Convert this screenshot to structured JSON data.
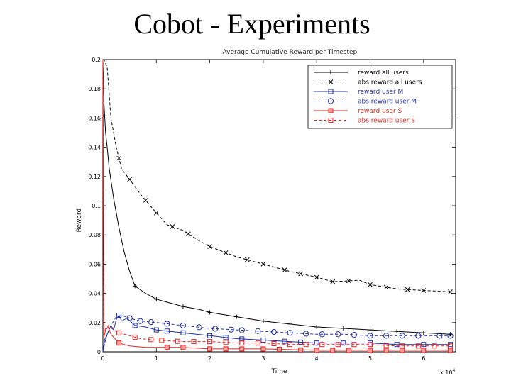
{
  "slide": {
    "title": "Cobot - Experiments"
  },
  "chart_data": {
    "type": "line",
    "title": "Average Cumulative Reward per Timestep",
    "xlabel": "Time",
    "ylabel": "Reward",
    "x_multiplier": "x 10",
    "x_multiplier_exp": "4",
    "xlim": [
      0,
      6.6
    ],
    "ylim": [
      0,
      0.2
    ],
    "xticks": [
      0,
      1,
      2,
      3,
      4,
      5,
      6
    ],
    "xtick_labels": [
      "0",
      "1",
      "2",
      "3",
      "4",
      "5",
      "6"
    ],
    "yticks": [
      0,
      0.02,
      0.04,
      0.06,
      0.08,
      0.1,
      0.12,
      0.14,
      0.16,
      0.18,
      0.2
    ],
    "ytick_labels": [
      "0",
      "0.02",
      "0.04",
      "0.06",
      "0.08",
      "0.1",
      "0.12",
      "0.14",
      "0.16",
      "0.18",
      "0.2"
    ],
    "grid": false,
    "legend_position": "top-right",
    "series": [
      {
        "name": "reward all users",
        "color": "#000000",
        "dash": "",
        "marker": "plus",
        "x": [
          0,
          0.02,
          0.05,
          0.08,
          0.12,
          0.2,
          0.3,
          0.4,
          0.5,
          0.6,
          0.8,
          1.0,
          1.2,
          1.5,
          1.8,
          2.0,
          2.5,
          3.0,
          3.5,
          4.0,
          4.5,
          5.0,
          5.5,
          6.0,
          6.5
        ],
        "values": [
          0.2,
          0.17,
          0.15,
          0.14,
          0.125,
          0.105,
          0.085,
          0.068,
          0.055,
          0.045,
          0.04,
          0.036,
          0.034,
          0.031,
          0.029,
          0.027,
          0.024,
          0.021,
          0.019,
          0.017,
          0.016,
          0.015,
          0.014,
          0.013,
          0.012
        ],
        "marker_x": [
          0.6,
          1.0,
          1.5,
          2.0,
          2.5,
          3.0,
          3.5,
          4.0,
          4.5,
          5.0,
          5.5,
          6.0,
          6.5
        ]
      },
      {
        "name": "abs reward all users",
        "color": "#000000",
        "dash": "4 3",
        "marker": "x",
        "x": [
          0,
          0.02,
          0.08,
          0.15,
          0.25,
          0.35,
          0.5,
          0.7,
          1.0,
          1.2,
          1.5,
          1.8,
          2.0,
          2.5,
          3.0,
          3.5,
          4.0,
          4.3,
          4.8,
          5.0,
          5.5,
          6.0,
          6.5
        ],
        "values": [
          0.2,
          0.2,
          0.195,
          0.16,
          0.14,
          0.125,
          0.118,
          0.108,
          0.095,
          0.087,
          0.083,
          0.076,
          0.072,
          0.065,
          0.06,
          0.055,
          0.051,
          0.048,
          0.049,
          0.046,
          0.043,
          0.042,
          0.041
        ],
        "marker_x": [
          0.3,
          0.5,
          0.8,
          1.0,
          1.3,
          1.6,
          2.0,
          2.3,
          2.7,
          3.0,
          3.4,
          3.7,
          4.0,
          4.3,
          4.6,
          5.0,
          5.3,
          5.7,
          6.0,
          6.5
        ]
      },
      {
        "name": "reward user M",
        "color": "#1f2fa8",
        "dash": "",
        "marker": "square",
        "x": [
          0,
          0.03,
          0.08,
          0.15,
          0.2,
          0.25,
          0.3,
          0.35,
          0.45,
          0.6,
          0.8,
          1.0,
          1.5,
          2.0,
          2.5,
          3.0,
          3.5,
          4.0,
          4.5,
          5.0,
          5.5,
          6.0,
          6.5
        ],
        "values": [
          0,
          0.008,
          0.012,
          0.018,
          0.015,
          0.022,
          0.025,
          0.021,
          0.023,
          0.018,
          0.017,
          0.015,
          0.013,
          0.011,
          0.009,
          0.008,
          0.007,
          0.006,
          0.006,
          0.006,
          0.005,
          0.005,
          0.005
        ],
        "marker_x": [
          0.3,
          0.6,
          1.0,
          1.2,
          1.5,
          2.0,
          2.3,
          2.6,
          3.0,
          3.4,
          3.7,
          4.0,
          4.5,
          5.0,
          5.5,
          6.0,
          6.5
        ]
      },
      {
        "name": "abs reward user M",
        "color": "#1f2fa8",
        "dash": "4 3",
        "marker": "circle",
        "x": [
          0,
          0.03,
          0.08,
          0.15,
          0.25,
          0.35,
          0.5,
          0.7,
          1.0,
          1.5,
          2.0,
          2.5,
          3.0,
          3.5,
          4.0,
          4.5,
          5.0,
          5.5,
          6.0,
          6.5
        ],
        "values": [
          0,
          0.005,
          0.012,
          0.018,
          0.024,
          0.025,
          0.023,
          0.021,
          0.02,
          0.018,
          0.016,
          0.015,
          0.014,
          0.013,
          0.012,
          0.012,
          0.011,
          0.011,
          0.011,
          0.011
        ],
        "marker_x": [
          0.5,
          0.7,
          0.9,
          1.2,
          1.5,
          1.8,
          2.1,
          2.4,
          2.6,
          2.9,
          3.2,
          3.5,
          3.8,
          4.1,
          4.4,
          4.7,
          5.0,
          5.3,
          5.6,
          5.9,
          6.3,
          6.5
        ]
      },
      {
        "name": "reward user S",
        "color": "#e8231f",
        "dash": "",
        "marker": "filled-square",
        "x": [
          0,
          0.02,
          0.05,
          0.1,
          0.15,
          0.2,
          0.3,
          0.5,
          0.8,
          1.0,
          1.5,
          2.0,
          3.0,
          4.0,
          5.0,
          6.0,
          6.5
        ],
        "values": [
          0.2,
          0.01,
          0.015,
          0.017,
          0.012,
          0.01,
          0.006,
          0.004,
          0.003,
          0.003,
          0.003,
          0.002,
          0.002,
          0.001,
          0.001,
          0.001,
          0.001
        ],
        "marker_x": [
          0.3,
          1.2,
          1.5,
          2.0,
          2.3,
          2.6,
          3.0,
          3.3,
          3.7,
          4.0,
          4.3,
          4.6,
          5.0,
          5.3,
          5.6,
          6.0,
          6.5
        ]
      },
      {
        "name": "abs reward user S",
        "color": "#e8231f",
        "dash": "4 3",
        "marker": "square",
        "x": [
          0,
          0.02,
          0.05,
          0.1,
          0.2,
          0.3,
          0.5,
          0.7,
          1.0,
          1.5,
          2.0,
          2.5,
          3.0,
          3.5,
          4.0,
          4.5,
          5.0,
          5.5,
          6.0,
          6.5
        ],
        "values": [
          0.2,
          0.012,
          0.016,
          0.018,
          0.015,
          0.013,
          0.011,
          0.009,
          0.008,
          0.007,
          0.007,
          0.006,
          0.006,
          0.005,
          0.005,
          0.005,
          0.005,
          0.004,
          0.004,
          0.004
        ],
        "marker_x": [
          0.3,
          0.6,
          0.9,
          1.1,
          1.4,
          1.7,
          2.0,
          2.3,
          2.6,
          2.9,
          3.2,
          3.5,
          3.8,
          4.1,
          4.4,
          4.7,
          5.0,
          5.3,
          5.6,
          5.9,
          6.2,
          6.5
        ]
      }
    ]
  }
}
